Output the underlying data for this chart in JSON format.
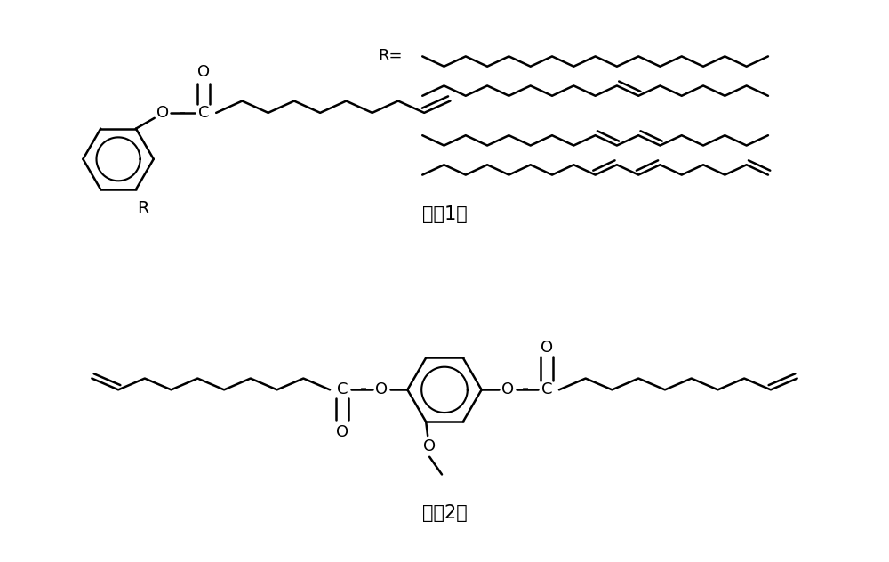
{
  "background_color": "#ffffff",
  "line_color": "#000000",
  "line_width": 1.8,
  "font_size": 13,
  "label_font_size": 15,
  "fig_width": 10.0,
  "fig_height": 6.32,
  "formula1_label": "式（1）",
  "formula2_label": "式（2）",
  "r_label": "R=",
  "r_italic": "R"
}
